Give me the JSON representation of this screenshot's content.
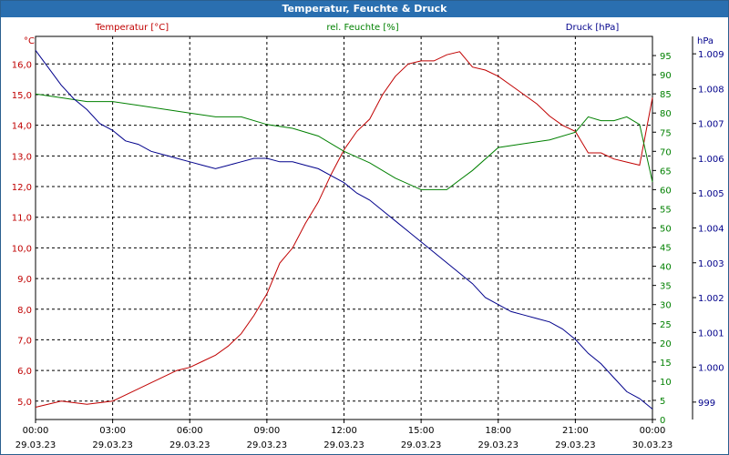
{
  "window": {
    "title": "Temperatur, Feuchte & Druck"
  },
  "chart_data": {
    "type": "line",
    "title": "Temperatur, Feuchte & Druck",
    "grid": true,
    "x_ticks": [
      {
        "time": "00:00",
        "date": "29.03.23"
      },
      {
        "time": "03:00",
        "date": "29.03.23"
      },
      {
        "time": "06:00",
        "date": "29.03.23"
      },
      {
        "time": "09:00",
        "date": "29.03.23"
      },
      {
        "time": "12:00",
        "date": "29.03.23"
      },
      {
        "time": "15:00",
        "date": "29.03.23"
      },
      {
        "time": "18:00",
        "date": "29.03.23"
      },
      {
        "time": "21:00",
        "date": "29.03.23"
      },
      {
        "time": "00:00",
        "date": "30.03.23"
      }
    ],
    "axes": {
      "temperature": {
        "header": "Temperatur [°C]",
        "unit": "°C",
        "color": "#c00000",
        "ylim": [
          4.4,
          16.9
        ],
        "ticks": [
          "5,0",
          "6,0",
          "7,0",
          "8,0",
          "9,0",
          "10,0",
          "11,0",
          "12,0",
          "13,0",
          "14,0",
          "15,0",
          "16,0"
        ]
      },
      "humidity": {
        "header": "rel. Feuchte [%]",
        "unit": "%",
        "color": "#008000",
        "ylim": [
          0,
          100
        ],
        "ticks": [
          "0",
          "5",
          "10",
          "15",
          "20",
          "25",
          "30",
          "35",
          "40",
          "45",
          "50",
          "55",
          "60",
          "65",
          "70",
          "75",
          "80",
          "85",
          "90",
          "95"
        ]
      },
      "pressure": {
        "header": "Druck [hPa]",
        "unit": "hPa",
        "color": "#00008b",
        "ylim": [
          998.5,
          1009.5
        ],
        "ticks": [
          "999",
          "1.000",
          "1.001",
          "1.002",
          "1.003",
          "1.004",
          "1.005",
          "1.006",
          "1.007",
          "1.008",
          "1.009"
        ]
      }
    },
    "series": [
      {
        "name": "Temperatur [°C]",
        "axis": "temperature",
        "color": "#c00000",
        "x": [
          0,
          1,
          2,
          3,
          3.5,
          4,
          4.5,
          5,
          5.5,
          6,
          6.5,
          7,
          7.5,
          8,
          8.5,
          9,
          9.5,
          10,
          10.5,
          11,
          11.5,
          12,
          12.5,
          13,
          13.5,
          14,
          14.5,
          15,
          15.5,
          16,
          16.5,
          17,
          17.5,
          18,
          18.5,
          19,
          19.5,
          20,
          20.5,
          21,
          21.5,
          22,
          22.5,
          23,
          23.5,
          24
        ],
        "values": [
          4.8,
          5.0,
          4.9,
          5.0,
          5.2,
          5.4,
          5.6,
          5.8,
          6.0,
          6.1,
          6.3,
          6.5,
          6.8,
          7.2,
          7.8,
          8.5,
          9.5,
          10.0,
          10.8,
          11.5,
          12.4,
          13.2,
          13.8,
          14.2,
          15.0,
          15.6,
          16.0,
          16.1,
          16.1,
          16.3,
          16.4,
          15.9,
          15.8,
          15.6,
          15.3,
          15.0,
          14.7,
          14.3,
          14.0,
          13.8,
          13.1,
          13.1,
          12.9,
          12.8,
          12.7,
          14.9
        ]
      },
      {
        "name": "rel. Feuchte [%]",
        "axis": "humidity",
        "color": "#008000",
        "x": [
          0,
          1,
          2,
          3,
          4,
          5,
          6,
          7,
          8,
          9,
          10,
          11,
          12,
          13,
          14,
          15,
          16,
          17,
          18,
          19,
          20,
          21,
          21.5,
          22,
          22.5,
          23,
          23.5,
          24
        ],
        "values": [
          85,
          84,
          83,
          83,
          82,
          81,
          80,
          79,
          79,
          77,
          76,
          74,
          70,
          67,
          63,
          60,
          60,
          65,
          71,
          72,
          73,
          75,
          79,
          78,
          78,
          79,
          77,
          62
        ]
      },
      {
        "name": "Druck [hPa]",
        "axis": "pressure",
        "color": "#00008b",
        "x": [
          0,
          0.5,
          1,
          1.5,
          2,
          2.5,
          3,
          3.5,
          4,
          4.5,
          5,
          5.5,
          6,
          6.5,
          7,
          7.5,
          8,
          8.5,
          9,
          9.5,
          10,
          10.5,
          11,
          11.5,
          12,
          12.5,
          13,
          13.5,
          14,
          14.5,
          15,
          15.5,
          16,
          16.5,
          17,
          17.5,
          18,
          18.5,
          19,
          19.5,
          20,
          20.5,
          21,
          21.5,
          22,
          22.5,
          23,
          23.5,
          24
        ],
        "values": [
          1009.1,
          1008.6,
          1008.1,
          1007.7,
          1007.4,
          1007.0,
          1006.8,
          1006.5,
          1006.4,
          1006.2,
          1006.1,
          1006.0,
          1005.9,
          1005.8,
          1005.7,
          1005.8,
          1005.9,
          1006.0,
          1006.0,
          1005.9,
          1005.9,
          1005.8,
          1005.7,
          1005.5,
          1005.3,
          1005.0,
          1004.8,
          1004.5,
          1004.2,
          1003.9,
          1003.6,
          1003.3,
          1003.0,
          1002.7,
          1002.4,
          1002.0,
          1001.8,
          1001.6,
          1001.5,
          1001.4,
          1001.3,
          1001.1,
          1000.8,
          1000.4,
          1000.1,
          999.7,
          999.3,
          999.1,
          998.8
        ]
      }
    ]
  }
}
